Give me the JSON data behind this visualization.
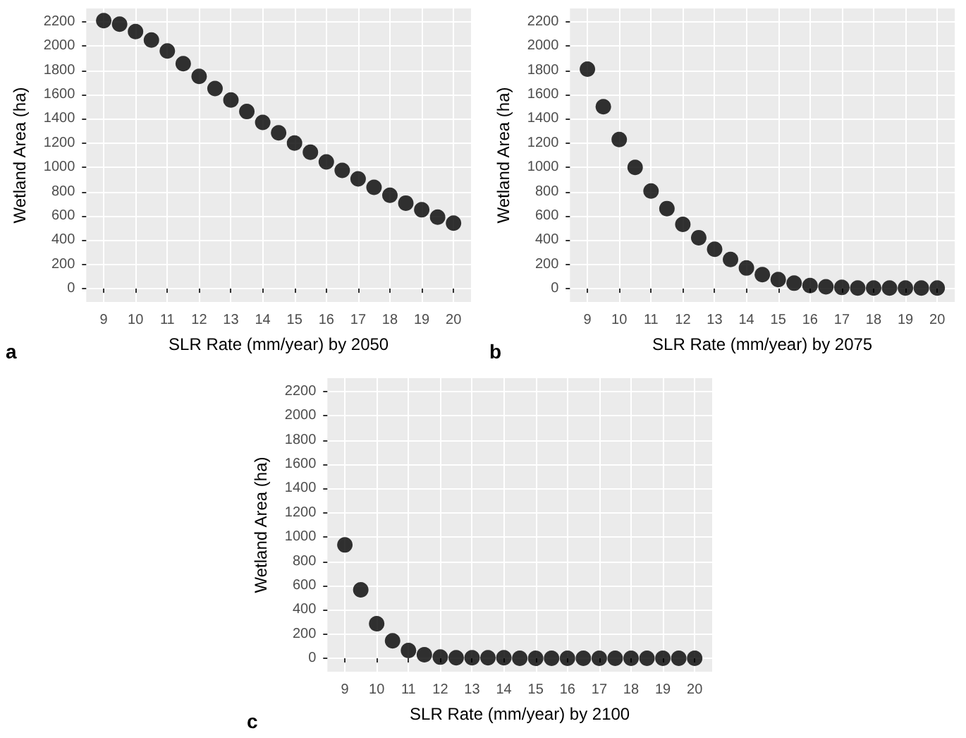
{
  "chart_data": [
    {
      "type": "scatter",
      "xlabel": "SLR Rate (mm/year) by 2050",
      "ylabel": "Wetland Area (ha)",
      "annotations": [
        "a"
      ],
      "x": [
        9,
        9.5,
        10,
        10.5,
        11,
        11.5,
        12,
        12.5,
        13,
        13.5,
        14,
        14.5,
        15,
        15.5,
        16,
        16.5,
        17,
        17.5,
        18,
        18.5,
        19,
        19.5,
        20
      ],
      "series": [
        {
          "color": "#000000",
          "values": [
            2210,
            2180,
            2120,
            2050,
            1960,
            1855,
            1750,
            1650,
            1555,
            1460,
            1370,
            1285,
            1200,
            1125,
            1045,
            975,
            905,
            835,
            770,
            705,
            650,
            590,
            540
          ]
        }
      ],
      "xlim": [
        8.45,
        20.55
      ],
      "xticks": [
        9,
        10,
        11,
        12,
        13,
        14,
        15,
        16,
        17,
        18,
        19,
        20
      ],
      "ylim": [
        -110,
        2310
      ],
      "yticks": [
        0,
        200,
        400,
        600,
        800,
        1000,
        1200,
        1400,
        1600,
        1800,
        2000,
        2200
      ],
      "grid": true,
      "marker": "circle"
    },
    {
      "type": "scatter",
      "xlabel": "SLR Rate (mm/year) by 2075",
      "ylabel": "Wetland Area (ha)",
      "annotations": [
        "b"
      ],
      "x": [
        9,
        9.5,
        10,
        10.5,
        11,
        11.5,
        12,
        12.5,
        13,
        13.5,
        14,
        14.5,
        15,
        15.5,
        16,
        16.5,
        17,
        17.5,
        18,
        18.5,
        19,
        19.5,
        20
      ],
      "series": [
        {
          "color": "#000000",
          "values": [
            1810,
            1500,
            1230,
            1000,
            805,
            660,
            530,
            420,
            325,
            240,
            170,
            115,
            75,
            45,
            25,
            15,
            10,
            5,
            5,
            5,
            5,
            5,
            5
          ]
        }
      ],
      "xlim": [
        8.45,
        20.55
      ],
      "xticks": [
        9,
        10,
        11,
        12,
        13,
        14,
        15,
        16,
        17,
        18,
        19,
        20
      ],
      "ylim": [
        -110,
        2310
      ],
      "yticks": [
        0,
        200,
        400,
        600,
        800,
        1000,
        1200,
        1400,
        1600,
        1800,
        2000,
        2200
      ],
      "grid": true,
      "marker": "circle"
    },
    {
      "type": "scatter",
      "xlabel": "SLR Rate (mm/year) by 2100",
      "ylabel": "Wetland Area (ha)",
      "annotations": [
        "c"
      ],
      "x": [
        9,
        9.5,
        10,
        10.5,
        11,
        11.5,
        12,
        12.5,
        13,
        13.5,
        14,
        14.5,
        15,
        15.5,
        16,
        16.5,
        17,
        17.5,
        18,
        18.5,
        19,
        19.5,
        20
      ],
      "series": [
        {
          "color": "#000000",
          "values": [
            935,
            565,
            285,
            145,
            65,
            30,
            10,
            5,
            5,
            5,
            5,
            0,
            0,
            0,
            0,
            0,
            0,
            0,
            0,
            0,
            0,
            0,
            0
          ]
        }
      ],
      "xlim": [
        8.45,
        20.55
      ],
      "xticks": [
        9,
        10,
        11,
        12,
        13,
        14,
        15,
        16,
        17,
        18,
        19,
        20
      ],
      "ylim": [
        -110,
        2310
      ],
      "yticks": [
        0,
        200,
        400,
        600,
        800,
        1000,
        1200,
        1400,
        1600,
        1800,
        2000,
        2200
      ],
      "grid": true,
      "marker": "circle"
    }
  ]
}
